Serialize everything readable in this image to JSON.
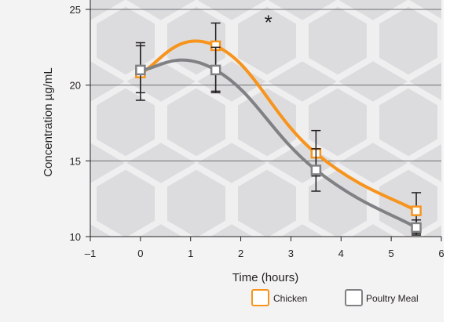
{
  "chart_data": {
    "type": "line",
    "title": "",
    "xlabel": "Time (hours)",
    "ylabel": "Concentration µg/mL",
    "xlim": [
      -1,
      6
    ],
    "ylim": [
      10,
      25
    ],
    "xticks": [
      -1,
      0,
      1,
      2,
      3,
      4,
      5,
      6
    ],
    "xtick_labels": [
      "–1",
      "0",
      "1",
      "2",
      "3",
      "4",
      "5",
      "6"
    ],
    "yticks": [
      10,
      15,
      20,
      25
    ],
    "grid": "horizontal",
    "legend_position": "bottom-right",
    "annotation": "*",
    "annotation_at": [
      2.55,
      24.2
    ],
    "series": [
      {
        "name": "Chicken",
        "color": "#f7941d",
        "x": [
          0,
          1.5,
          3.5,
          5.5
        ],
        "y": [
          20.8,
          22.6,
          15.5,
          11.7
        ],
        "err_low": [
          1.8,
          3.0,
          1.5,
          1.5
        ],
        "err_high": [
          1.8,
          1.5,
          1.5,
          1.2
        ]
      },
      {
        "name": "Poultry Meal",
        "color": "#808184",
        "x": [
          0,
          1.5,
          3.5,
          5.5
        ],
        "y": [
          21.0,
          21.0,
          14.4,
          10.6
        ],
        "err_low": [
          1.5,
          1.5,
          1.4,
          0.5
        ],
        "err_high": [
          1.8,
          1.5,
          1.4,
          0.5
        ]
      }
    ]
  }
}
